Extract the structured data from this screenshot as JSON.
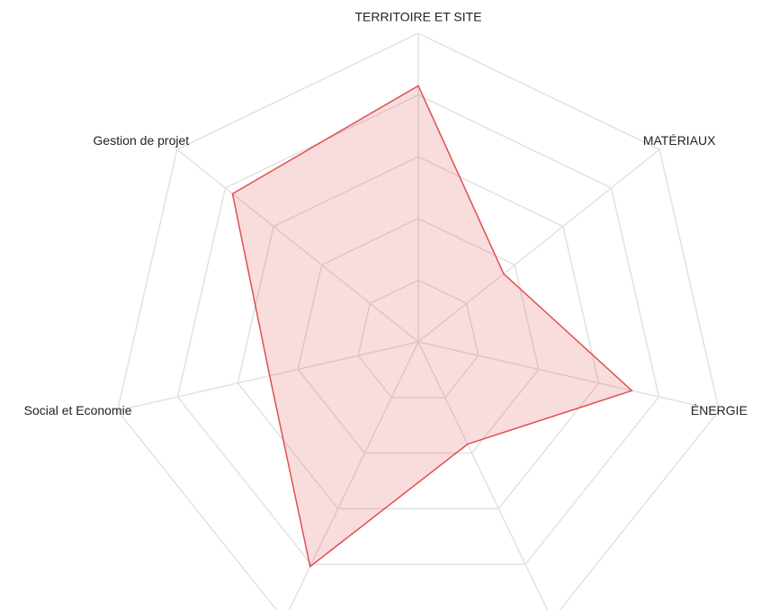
{
  "chart_data": {
    "type": "radar",
    "categories": [
      "TERRITOIRE ET SITE",
      "MATÉRIAUX",
      "ÉNERGIE",
      null,
      null,
      "Social et Economie",
      "Gestion de projet"
    ],
    "series": [
      {
        "color": "#e05050",
        "values": [
          4.15,
          1.77,
          3.55,
          1.84,
          4.04,
          2.47,
          3.85
        ]
      }
    ],
    "ylim": [
      0,
      5
    ],
    "yticks": [
      1,
      2,
      3,
      4,
      5
    ],
    "grid": true
  }
}
